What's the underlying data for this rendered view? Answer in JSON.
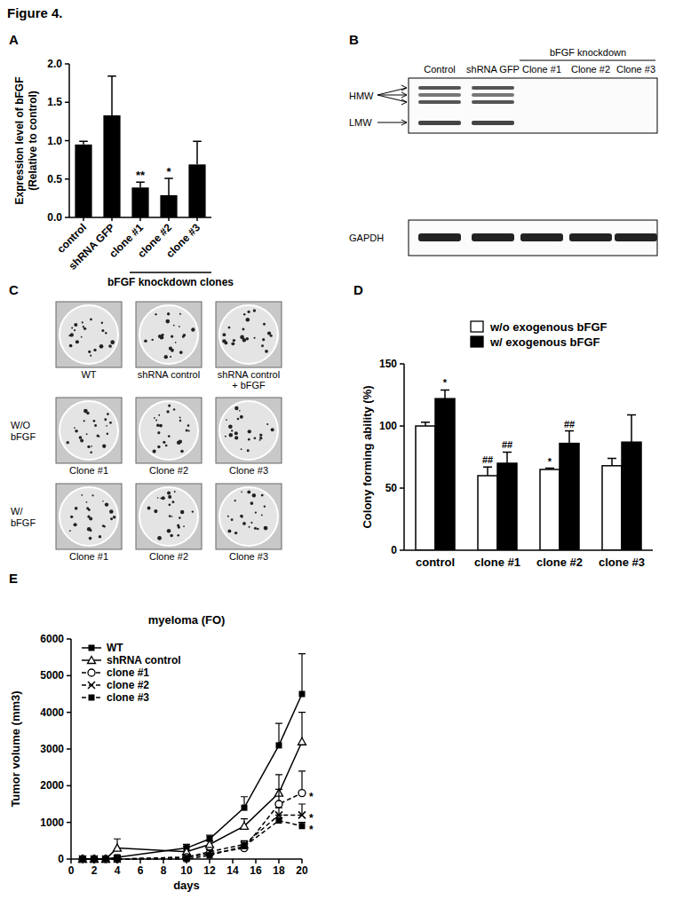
{
  "figure_title": "Figure 4.",
  "chart_data": [
    {
      "panel": "A",
      "type": "bar",
      "y_label": [
        "Expression level of bFGF",
        "(Relative to control)"
      ],
      "categories": [
        "control",
        "shRNA GFP",
        "clone #1",
        "clone #2",
        "clone #3"
      ],
      "values": [
        0.95,
        1.33,
        0.39,
        0.29,
        0.69
      ],
      "errors": [
        0.04,
        0.51,
        0.07,
        0.22,
        0.3
      ],
      "significance": [
        null,
        null,
        "**",
        "*",
        null
      ],
      "group_label": "bFGF knockdown clones",
      "color": "#000000",
      "ylim": [
        0,
        2
      ],
      "yticks": [
        {
          "value": 0,
          "label": "0.0"
        },
        {
          "value": 0.5,
          "label": "0.5"
        },
        {
          "value": 1,
          "label": "1.0"
        },
        {
          "value": 1.5,
          "label": "1.5"
        },
        {
          "value": 2,
          "label": "2.0"
        }
      ]
    },
    {
      "panel": "D",
      "type": "bar",
      "y_label": "Colony forming ability (%)",
      "categories": [
        "control",
        "clone #1",
        "clone #2",
        "clone #3"
      ],
      "series": [
        {
          "name": "w/o exogenous bFGF",
          "color": "#ffffff",
          "values": [
            100,
            60,
            65,
            68
          ],
          "errors": [
            3,
            7,
            1,
            6
          ],
          "significance": [
            null,
            "##",
            "*",
            null
          ]
        },
        {
          "name": "w/ exogenous bFGF",
          "color": "#000000",
          "values": [
            122,
            70,
            86,
            87
          ],
          "errors": [
            7,
            9,
            10,
            22
          ],
          "significance": [
            "*",
            "##",
            "##",
            null
          ]
        }
      ],
      "ylim": [
        0,
        150
      ],
      "yticks": [
        0,
        50,
        100,
        150
      ],
      "legend": "top-right"
    },
    {
      "panel": "E",
      "type": "line",
      "title": "myeloma (FO)",
      "x_label": "days",
      "y_label": "Tumor volume (mm3)",
      "x": [
        1,
        2,
        3,
        4,
        10,
        12,
        15,
        18,
        20
      ],
      "series": [
        {
          "name": "WT",
          "color": "#000000",
          "marker": "square",
          "line_style": "solid",
          "values": [
            0,
            0,
            0,
            50,
            300,
            550,
            1400,
            3100,
            4500
          ],
          "errors": [
            0,
            0,
            0,
            50,
            100,
            100,
            300,
            600,
            1100
          ],
          "significance": null
        },
        {
          "name": "shRNA control",
          "color": "#000000",
          "marker": "triangle-open",
          "line_style": "solid",
          "values": [
            0,
            0,
            0,
            300,
            200,
            400,
            900,
            1800,
            3200
          ],
          "errors": [
            0,
            0,
            0,
            250,
            150,
            100,
            200,
            500,
            800
          ],
          "significance": null
        },
        {
          "name": "clone #1",
          "color": "#000000",
          "marker": "circle-open",
          "line_style": "dashed",
          "values": [
            0,
            0,
            0,
            0,
            50,
            150,
            300,
            1500,
            1800
          ],
          "errors": [
            0,
            0,
            0,
            0,
            50,
            50,
            100,
            400,
            600
          ],
          "significance": "*"
        },
        {
          "name": "clone #2",
          "color": "#000000",
          "marker": "x",
          "line_style": "dashed",
          "values": [
            0,
            0,
            0,
            0,
            50,
            200,
            400,
            1200,
            1200
          ],
          "errors": [
            0,
            0,
            0,
            0,
            50,
            50,
            100,
            200,
            300
          ],
          "significance": "*"
        },
        {
          "name": "clone #3",
          "color": "#000000",
          "marker": "square",
          "line_style": "dashed",
          "values": [
            0,
            0,
            0,
            0,
            0,
            100,
            350,
            1050,
            900
          ],
          "errors": [
            0,
            0,
            0,
            0,
            0,
            50,
            100,
            150,
            100
          ],
          "significance": "*"
        }
      ],
      "xlim": [
        0,
        20
      ],
      "xticks": [
        0,
        2,
        4,
        6,
        8,
        10,
        12,
        14,
        16,
        18,
        20
      ],
      "ylim": [
        0,
        6000
      ],
      "yticks": [
        0,
        1000,
        2000,
        3000,
        4000,
        5000,
        6000
      ],
      "legend": "top-left"
    }
  ],
  "blot": {
    "panel": "B",
    "lanes": [
      "Control",
      "shRNA GFP",
      "Clone #1",
      "Clone #2",
      "Clone #3"
    ],
    "group_label": "bFGF knockdown",
    "band_labels": [
      "HMW",
      "LMW"
    ],
    "loading_label": "GAPDH"
  },
  "plates": {
    "panel": "C",
    "top_row": [
      "WT",
      "shRNA control",
      "shRNA control + bFGF"
    ],
    "row_labels": [
      "W/O bFGF",
      "W/ bFGF"
    ],
    "row_columns": [
      "Clone #1",
      "Clone #2",
      "Clone #3"
    ]
  }
}
